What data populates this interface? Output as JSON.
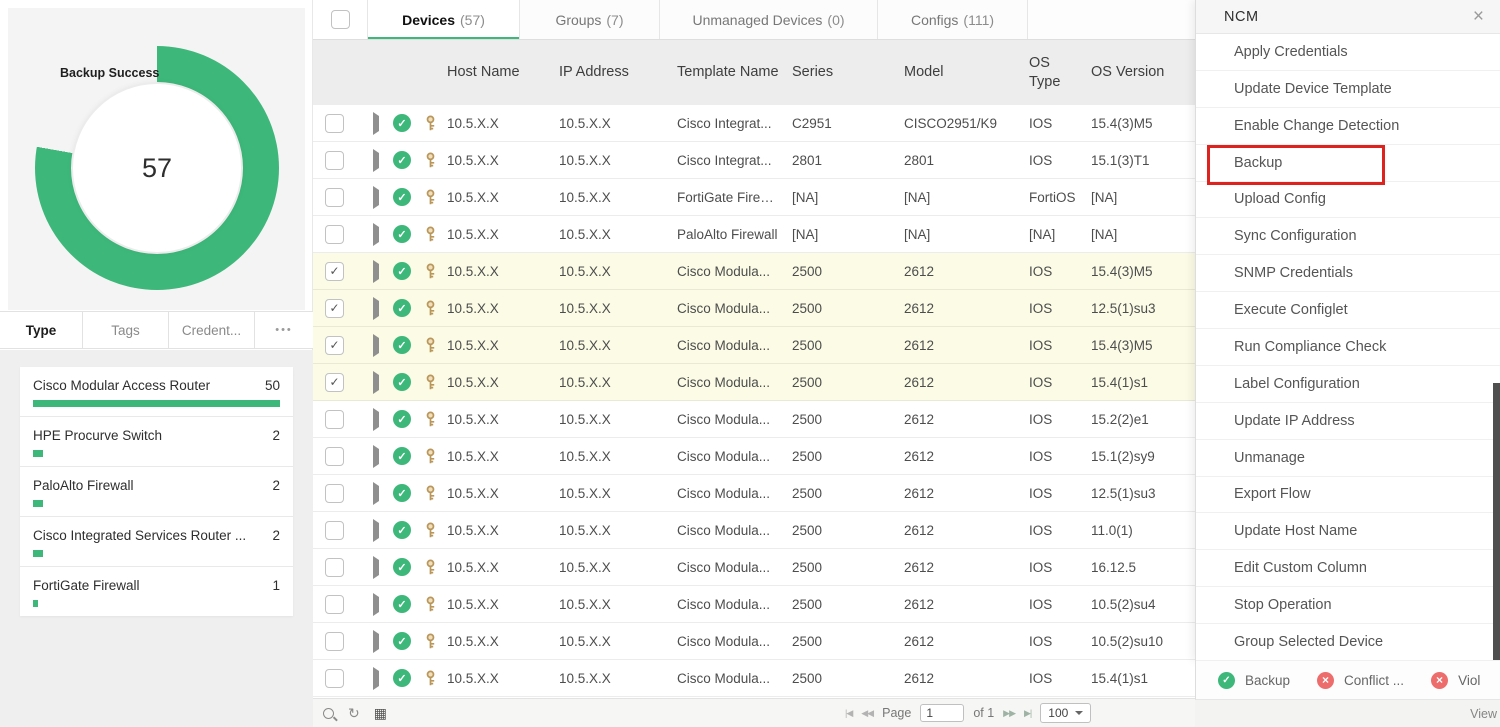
{
  "colors": {
    "green": "#3db87a",
    "red_soft": "#ed6d6d",
    "red_highlight": "#de231e",
    "selected_row": "#fbfbe6"
  },
  "left_panel": {
    "chart": {
      "label": "Backup Success",
      "value": "57",
      "arc_degrees": 280
    },
    "max_count": 50,
    "tabs": [
      {
        "label": "Type",
        "active": true
      },
      {
        "label": "Tags"
      },
      {
        "label": "Credent..."
      },
      {
        "label": "•••",
        "more": true
      }
    ],
    "device_types": [
      {
        "name": "Cisco Modular Access Router",
        "count": 50
      },
      {
        "name": "HPE Procurve Switch",
        "count": 2
      },
      {
        "name": "PaloAlto Firewall",
        "count": 2
      },
      {
        "name": "Cisco Integrated Services Router ...",
        "count": 2
      },
      {
        "name": "FortiGate Firewall",
        "count": 1
      }
    ]
  },
  "chart_data": {
    "type": "pie",
    "title": "Backup Success",
    "center_value": 57,
    "arc_percent": 78,
    "bars": {
      "categories": [
        "Cisco Modular Access Router",
        "HPE Procurve Switch",
        "PaloAlto Firewall",
        "Cisco Integrated Services Router ...",
        "FortiGate Firewall"
      ],
      "values": [
        50,
        2,
        2,
        2,
        1
      ]
    }
  },
  "table": {
    "tabs": [
      {
        "label": "Devices",
        "count": "(57)",
        "active": true
      },
      {
        "label": "Groups",
        "count": "(7)"
      },
      {
        "label": "Unmanaged Devices",
        "count": "(0)"
      },
      {
        "label": "Configs",
        "count": "(111)"
      }
    ],
    "columns": {
      "host": "Host Name",
      "ip": "IP Address",
      "template": "Template Name",
      "series": "Series",
      "model": "Model",
      "os_type": "OS Type",
      "os_version": "OS Version"
    },
    "rows": [
      {
        "host": "10.5.X.X",
        "ip": "10.5.X.X",
        "template": "Cisco Integrat...",
        "series": "C2951",
        "model": "CISCO2951/K9",
        "os_type": "IOS",
        "os_version": "15.4(3)M5"
      },
      {
        "host": "10.5.X.X",
        "ip": "10.5.X.X",
        "template": "Cisco Integrat...",
        "series": "2801",
        "model": "2801",
        "os_type": "IOS",
        "os_version": "15.1(3)T1"
      },
      {
        "host": "10.5.X.X",
        "ip": "10.5.X.X",
        "template": "FortiGate Firewal",
        "series": "[NA]",
        "model": "[NA]",
        "os_type": "FortiOS",
        "os_version": "[NA]"
      },
      {
        "host": "10.5.X.X",
        "ip": "10.5.X.X",
        "template": "PaloAlto Firewall",
        "series": "[NA]",
        "model": "[NA]",
        "os_type": "[NA]",
        "os_version": "[NA]"
      },
      {
        "checked": true,
        "host": "10.5.X.X",
        "ip": "10.5.X.X",
        "template": "Cisco Modula...",
        "series": "2500",
        "model": "2612",
        "os_type": "IOS",
        "os_version": "15.4(3)M5"
      },
      {
        "checked": true,
        "host": "10.5.X.X",
        "ip": "10.5.X.X",
        "template": "Cisco Modula...",
        "series": "2500",
        "model": "2612",
        "os_type": "IOS",
        "os_version": "12.5(1)su3"
      },
      {
        "checked": true,
        "host": "10.5.X.X",
        "ip": "10.5.X.X",
        "template": "Cisco Modula...",
        "series": "2500",
        "model": "2612",
        "os_type": "IOS",
        "os_version": "15.4(3)M5"
      },
      {
        "checked": true,
        "host": "10.5.X.X",
        "ip": "10.5.X.X",
        "template": "Cisco Modula...",
        "series": "2500",
        "model": "2612",
        "os_type": "IOS",
        "os_version": "15.4(1)s1"
      },
      {
        "host": "10.5.X.X",
        "ip": "10.5.X.X",
        "template": "Cisco Modula...",
        "series": "2500",
        "model": "2612",
        "os_type": "IOS",
        "os_version": "15.2(2)e1"
      },
      {
        "host": "10.5.X.X",
        "ip": "10.5.X.X",
        "template": "Cisco Modula...",
        "series": "2500",
        "model": "2612",
        "os_type": "IOS",
        "os_version": "15.1(2)sy9"
      },
      {
        "host": "10.5.X.X",
        "ip": "10.5.X.X",
        "template": "Cisco Modula...",
        "series": "2500",
        "model": "2612",
        "os_type": "IOS",
        "os_version": "12.5(1)su3"
      },
      {
        "host": "10.5.X.X",
        "ip": "10.5.X.X",
        "template": "Cisco Modula...",
        "series": "2500",
        "model": "2612",
        "os_type": "IOS",
        "os_version": "11.0(1)"
      },
      {
        "host": "10.5.X.X",
        "ip": "10.5.X.X",
        "template": "Cisco Modula...",
        "series": "2500",
        "model": "2612",
        "os_type": "IOS",
        "os_version": "16.12.5"
      },
      {
        "host": "10.5.X.X",
        "ip": "10.5.X.X",
        "template": "Cisco Modula...",
        "series": "2500",
        "model": "2612",
        "os_type": "IOS",
        "os_version": "10.5(2)su4"
      },
      {
        "host": "10.5.X.X",
        "ip": "10.5.X.X",
        "template": "Cisco Modula...",
        "series": "2500",
        "model": "2612",
        "os_type": "IOS",
        "os_version": "10.5(2)su10"
      },
      {
        "host": "10.5.X.X",
        "ip": "10.5.X.X",
        "template": "Cisco Modula...",
        "series": "2500",
        "model": "2612",
        "os_type": "IOS",
        "os_version": "15.4(1)s1"
      }
    ],
    "footer": {
      "page_label": "Page",
      "page_value": "1",
      "of_label": "of 1",
      "page_size": "100"
    }
  },
  "ncm_panel": {
    "title": "NCM",
    "items": [
      {
        "label": "Apply Credentials"
      },
      {
        "label": "Update Device Template"
      },
      {
        "label": "Enable Change Detection"
      },
      {
        "label": "Backup",
        "highlighted": true
      },
      {
        "label": "Upload Config"
      },
      {
        "label": "Sync Configuration"
      },
      {
        "label": "SNMP Credentials"
      },
      {
        "label": "Execute Configlet"
      },
      {
        "label": "Run Compliance Check"
      },
      {
        "label": "Label Configuration"
      },
      {
        "label": "Update IP Address"
      },
      {
        "label": "Unmanage"
      },
      {
        "label": "Export Flow"
      },
      {
        "label": "Update Host Name"
      },
      {
        "label": "Edit Custom Column"
      },
      {
        "label": "Stop Operation"
      },
      {
        "label": "Group Selected Device"
      }
    ]
  },
  "legend": {
    "items": [
      {
        "icon": "check-circle",
        "label": "Backup"
      },
      {
        "icon": "cross-circle",
        "label": "Conflict ..."
      },
      {
        "icon": "cross-circle",
        "label": "Viol"
      }
    ],
    "view_label": "View"
  }
}
